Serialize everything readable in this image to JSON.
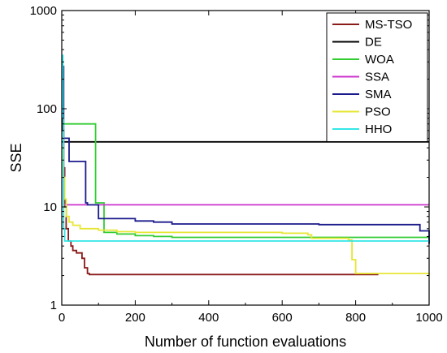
{
  "chart_data": {
    "type": "line",
    "xlabel": "Number of function evaluations",
    "ylabel": "SSE",
    "xlim": [
      0,
      1000
    ],
    "ylim": [
      1,
      1000
    ],
    "yscale": "log",
    "grid": false,
    "legend_position": "top-right",
    "xticks": [
      0,
      200,
      400,
      600,
      800,
      1000
    ],
    "xtick_labels": [
      "0",
      "200",
      "400",
      "600",
      "800",
      "1000"
    ],
    "yticks": [
      1,
      10,
      100,
      1000
    ],
    "ytick_labels": [
      "1",
      "10",
      "100",
      "1000"
    ],
    "series": [
      {
        "name": "MS-TSO",
        "color": "#8b1a1a",
        "x": [
          0,
          3,
          5,
          8,
          12,
          18,
          25,
          30,
          40,
          55,
          62,
          70,
          75,
          862
        ],
        "y": [
          200,
          60,
          25,
          10,
          6,
          4.5,
          4.0,
          3.6,
          3.4,
          3.0,
          2.4,
          2.1,
          2.05,
          2.05
        ]
      },
      {
        "name": "DE",
        "color": "#000000",
        "x": [
          0,
          1000
        ],
        "y": [
          46,
          46
        ]
      },
      {
        "name": "WOA",
        "color": "#33cc33",
        "x": [
          0,
          3,
          5,
          88,
          92,
          105,
          115,
          150,
          200,
          250,
          300,
          1000
        ],
        "y": [
          70,
          70,
          70,
          70,
          11,
          11,
          5.5,
          5.3,
          5.1,
          5.0,
          4.9,
          4.9
        ]
      },
      {
        "name": "SSA",
        "color": "#cc33cc",
        "x": [
          0,
          5,
          1000
        ],
        "y": [
          50,
          10.5,
          10.5
        ]
      },
      {
        "name": "SMA",
        "color": "#1a1a8c",
        "x": [
          0,
          5,
          15,
          20,
          60,
          65,
          70,
          100,
          150,
          200,
          250,
          300,
          600,
          700,
          800,
          850,
          950,
          975,
          995,
          1000
        ],
        "y": [
          270,
          50,
          50,
          29,
          29,
          11,
          10.5,
          7.6,
          7.6,
          7.2,
          7.0,
          6.7,
          6.7,
          6.6,
          6.6,
          6.6,
          6.6,
          5.7,
          5.7,
          4.2
        ]
      },
      {
        "name": "PSO",
        "color": "#e6e633",
        "x": [
          0,
          4,
          8,
          12,
          20,
          30,
          50,
          100,
          150,
          200,
          600,
          670,
          680,
          780,
          790,
          800,
          1000
        ],
        "y": [
          40,
          20,
          12,
          8,
          7,
          6.5,
          6.0,
          5.8,
          5.6,
          5.5,
          5.4,
          5.2,
          4.8,
          4.6,
          2.9,
          2.1,
          2.05
        ]
      },
      {
        "name": "HHO",
        "color": "#33e6e6",
        "x": [
          0,
          3,
          5,
          8,
          1000
        ],
        "y": [
          350,
          80,
          6,
          4.5,
          4.5
        ]
      }
    ]
  }
}
